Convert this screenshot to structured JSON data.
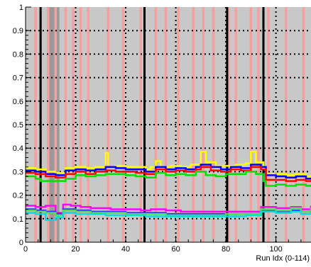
{
  "chart_data": {
    "type": "line",
    "title": "",
    "xlabel": "Run Idx (0-114)",
    "ylabel": "",
    "xlim": [
      0,
      114
    ],
    "ylim": [
      0,
      1
    ],
    "x_ticks": [
      0,
      20,
      40,
      60,
      80,
      100
    ],
    "y_ticks": [
      0,
      0.1,
      0.2,
      0.3,
      0.4,
      0.5,
      0.6,
      0.7,
      0.8,
      0.9,
      1
    ],
    "grid": true,
    "legend": "none",
    "colors": {
      "background": "#c8c8c8",
      "grid": "#000000",
      "bad_run_band": "#f4a0a0",
      "excluded_region": "#999999",
      "boundary_line": "#000000"
    },
    "bad_runs": [
      3.5,
      5.5,
      8.5,
      11.5,
      15.5,
      18.5,
      21.5,
      24.5,
      32.5,
      38.5,
      45.5,
      51.5,
      55.5,
      60.5,
      66.5,
      70.5,
      74.5,
      80.5,
      83.5,
      89.5,
      92.5,
      96.5,
      103.5,
      110.5
    ],
    "excluded_region": [
      9.5,
      13.5
    ],
    "boundaries": [
      6,
      47.5,
      80.5,
      95
    ],
    "series": [
      {
        "color": "#ffff00",
        "points": [
          [
            0,
            0.315
          ],
          [
            4,
            0.31
          ],
          [
            8,
            0.3
          ],
          [
            12,
            0.295
          ],
          [
            16,
            0.315
          ],
          [
            20,
            0.32
          ],
          [
            24,
            0.315
          ],
          [
            28,
            0.32
          ],
          [
            32,
            0.38
          ],
          [
            33,
            0.32
          ],
          [
            36,
            0.325
          ],
          [
            40,
            0.32
          ],
          [
            44,
            0.32
          ],
          [
            48,
            0.31
          ],
          [
            50,
            0.32
          ],
          [
            52,
            0.345
          ],
          [
            54,
            0.32
          ],
          [
            58,
            0.325
          ],
          [
            62,
            0.32
          ],
          [
            66,
            0.33
          ],
          [
            70,
            0.385
          ],
          [
            72,
            0.34
          ],
          [
            76,
            0.325
          ],
          [
            80,
            0.325
          ],
          [
            84,
            0.33
          ],
          [
            88,
            0.335
          ],
          [
            90,
            0.385
          ],
          [
            92,
            0.34
          ],
          [
            95,
            0.315
          ],
          [
            96,
            0.29
          ],
          [
            100,
            0.29
          ],
          [
            104,
            0.285
          ],
          [
            108,
            0.29
          ],
          [
            112,
            0.28
          ],
          [
            114,
            0.285
          ]
        ]
      },
      {
        "color": "#0000ff",
        "points": [
          [
            0,
            0.305
          ],
          [
            4,
            0.3
          ],
          [
            8,
            0.29
          ],
          [
            12,
            0.285
          ],
          [
            16,
            0.305
          ],
          [
            20,
            0.31
          ],
          [
            24,
            0.305
          ],
          [
            28,
            0.31
          ],
          [
            32,
            0.32
          ],
          [
            36,
            0.315
          ],
          [
            40,
            0.31
          ],
          [
            44,
            0.31
          ],
          [
            48,
            0.3
          ],
          [
            52,
            0.32
          ],
          [
            56,
            0.31
          ],
          [
            60,
            0.315
          ],
          [
            64,
            0.31
          ],
          [
            68,
            0.32
          ],
          [
            70,
            0.33
          ],
          [
            74,
            0.32
          ],
          [
            78,
            0.31
          ],
          [
            82,
            0.32
          ],
          [
            86,
            0.315
          ],
          [
            90,
            0.33
          ],
          [
            94,
            0.32
          ],
          [
            96,
            0.285
          ],
          [
            100,
            0.28
          ],
          [
            104,
            0.275
          ],
          [
            108,
            0.28
          ],
          [
            112,
            0.27
          ],
          [
            114,
            0.275
          ]
        ]
      },
      {
        "color": "#ff0000",
        "points": [
          [
            0,
            0.295
          ],
          [
            4,
            0.29
          ],
          [
            8,
            0.28
          ],
          [
            12,
            0.275
          ],
          [
            16,
            0.29
          ],
          [
            20,
            0.3
          ],
          [
            24,
            0.29
          ],
          [
            28,
            0.3
          ],
          [
            32,
            0.305
          ],
          [
            36,
            0.3
          ],
          [
            40,
            0.3
          ],
          [
            44,
            0.295
          ],
          [
            48,
            0.29
          ],
          [
            52,
            0.31
          ],
          [
            56,
            0.3
          ],
          [
            60,
            0.305
          ],
          [
            64,
            0.3
          ],
          [
            68,
            0.31
          ],
          [
            70,
            0.32
          ],
          [
            74,
            0.305
          ],
          [
            78,
            0.3
          ],
          [
            82,
            0.31
          ],
          [
            86,
            0.305
          ],
          [
            90,
            0.32
          ],
          [
            94,
            0.31
          ],
          [
            96,
            0.265
          ],
          [
            100,
            0.265
          ],
          [
            104,
            0.26
          ],
          [
            108,
            0.265
          ],
          [
            112,
            0.26
          ],
          [
            114,
            0.265
          ]
        ]
      },
      {
        "color": "#00e000",
        "points": [
          [
            0,
            0.28
          ],
          [
            4,
            0.27
          ],
          [
            6,
            0.26
          ],
          [
            8,
            0.26
          ],
          [
            12,
            0.26
          ],
          [
            16,
            0.27
          ],
          [
            20,
            0.285
          ],
          [
            24,
            0.28
          ],
          [
            28,
            0.285
          ],
          [
            32,
            0.29
          ],
          [
            36,
            0.29
          ],
          [
            40,
            0.285
          ],
          [
            44,
            0.28
          ],
          [
            48,
            0.275
          ],
          [
            52,
            0.295
          ],
          [
            56,
            0.285
          ],
          [
            60,
            0.29
          ],
          [
            64,
            0.285
          ],
          [
            68,
            0.3
          ],
          [
            72,
            0.285
          ],
          [
            76,
            0.28
          ],
          [
            80,
            0.29
          ],
          [
            84,
            0.29
          ],
          [
            88,
            0.3
          ],
          [
            92,
            0.29
          ],
          [
            95,
            0.26
          ],
          [
            96,
            0.24
          ],
          [
            100,
            0.245
          ],
          [
            104,
            0.24
          ],
          [
            108,
            0.245
          ],
          [
            112,
            0.24
          ],
          [
            114,
            0.245
          ]
        ]
      },
      {
        "color": "#ff00ff",
        "points": [
          [
            0,
            0.155
          ],
          [
            4,
            0.15
          ],
          [
            8,
            0.155
          ],
          [
            12,
            0.125
          ],
          [
            14,
            0.125
          ],
          [
            15,
            0.16
          ],
          [
            18,
            0.155
          ],
          [
            22,
            0.15
          ],
          [
            26,
            0.145
          ],
          [
            30,
            0.145
          ],
          [
            34,
            0.14
          ],
          [
            40,
            0.14
          ],
          [
            46,
            0.135
          ],
          [
            50,
            0.14
          ],
          [
            56,
            0.135
          ],
          [
            62,
            0.13
          ],
          [
            68,
            0.13
          ],
          [
            74,
            0.13
          ],
          [
            80,
            0.13
          ],
          [
            86,
            0.13
          ],
          [
            92,
            0.13
          ],
          [
            94,
            0.15
          ],
          [
            100,
            0.145
          ],
          [
            106,
            0.15
          ],
          [
            110,
            0.14
          ],
          [
            114,
            0.155
          ]
        ]
      },
      {
        "color": "#3333ff",
        "points": [
          [
            0,
            0.14
          ],
          [
            4,
            0.135
          ],
          [
            8,
            0.13
          ],
          [
            12,
            0.12
          ],
          [
            15,
            0.14
          ],
          [
            20,
            0.135
          ],
          [
            26,
            0.13
          ],
          [
            32,
            0.13
          ],
          [
            40,
            0.125
          ],
          [
            48,
            0.125
          ],
          [
            56,
            0.12
          ],
          [
            64,
            0.12
          ],
          [
            72,
            0.12
          ],
          [
            80,
            0.12
          ],
          [
            88,
            0.12
          ],
          [
            94,
            0.135
          ],
          [
            100,
            0.13
          ],
          [
            106,
            0.135
          ],
          [
            110,
            0.13
          ],
          [
            114,
            0.14
          ]
        ]
      },
      {
        "color": "#55dd55",
        "points": [
          [
            0,
            0.135
          ],
          [
            4,
            0.13
          ],
          [
            8,
            0.125
          ],
          [
            12,
            0.115
          ],
          [
            15,
            0.135
          ],
          [
            20,
            0.13
          ],
          [
            26,
            0.125
          ],
          [
            32,
            0.125
          ],
          [
            40,
            0.12
          ],
          [
            48,
            0.12
          ],
          [
            56,
            0.115
          ],
          [
            64,
            0.115
          ],
          [
            72,
            0.115
          ],
          [
            80,
            0.12
          ],
          [
            88,
            0.12
          ],
          [
            94,
            0.14
          ],
          [
            100,
            0.135
          ],
          [
            106,
            0.145
          ],
          [
            110,
            0.13
          ],
          [
            114,
            0.145
          ]
        ]
      },
      {
        "color": "#00dddd",
        "points": [
          [
            0,
            0.125
          ],
          [
            4,
            0.12
          ],
          [
            8,
            0.095
          ],
          [
            12,
            0.105
          ],
          [
            15,
            0.125
          ],
          [
            20,
            0.12
          ],
          [
            26,
            0.12
          ],
          [
            32,
            0.115
          ],
          [
            40,
            0.115
          ],
          [
            48,
            0.11
          ],
          [
            56,
            0.11
          ],
          [
            64,
            0.11
          ],
          [
            72,
            0.11
          ],
          [
            80,
            0.11
          ],
          [
            88,
            0.115
          ],
          [
            94,
            0.13
          ],
          [
            100,
            0.125
          ],
          [
            106,
            0.13
          ],
          [
            110,
            0.12
          ],
          [
            114,
            0.13
          ]
        ]
      }
    ]
  }
}
